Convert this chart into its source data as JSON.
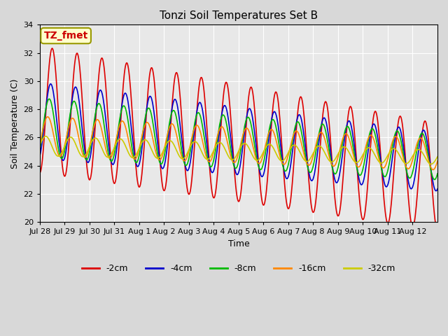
{
  "title": "Tonzi Soil Temperatures Set B",
  "xlabel": "Time",
  "ylabel": "Soil Temperature (C)",
  "ylim": [
    20,
    34
  ],
  "yticks": [
    20,
    22,
    24,
    26,
    28,
    30,
    32,
    34
  ],
  "plot_bg_color": "#e8e8e8",
  "fig_bg_color": "#d8d8d8",
  "annotation_text": "TZ_fmet",
  "annotation_color": "#cc0000",
  "annotation_bg": "#ffffcc",
  "annotation_border": "#999900",
  "series_colors": {
    "-2cm": "#dd0000",
    "-4cm": "#0000cc",
    "-8cm": "#00bb00",
    "-16cm": "#ff8800",
    "-32cm": "#cccc00"
  },
  "legend_labels": [
    "-2cm",
    "-4cm",
    "-8cm",
    "-16cm",
    "-32cm"
  ],
  "xtick_labels": [
    "Jul 28",
    "Jul 29",
    "Jul 30",
    "Jul 31",
    "Aug 1",
    "Aug 2",
    "Aug 3",
    "Aug 4",
    "Aug 5",
    "Aug 6",
    "Aug 7",
    "Aug 8",
    "Aug 9",
    "Aug 10",
    "Aug 11",
    "Aug 12"
  ],
  "n_days": 16,
  "samples_per_day": 48
}
